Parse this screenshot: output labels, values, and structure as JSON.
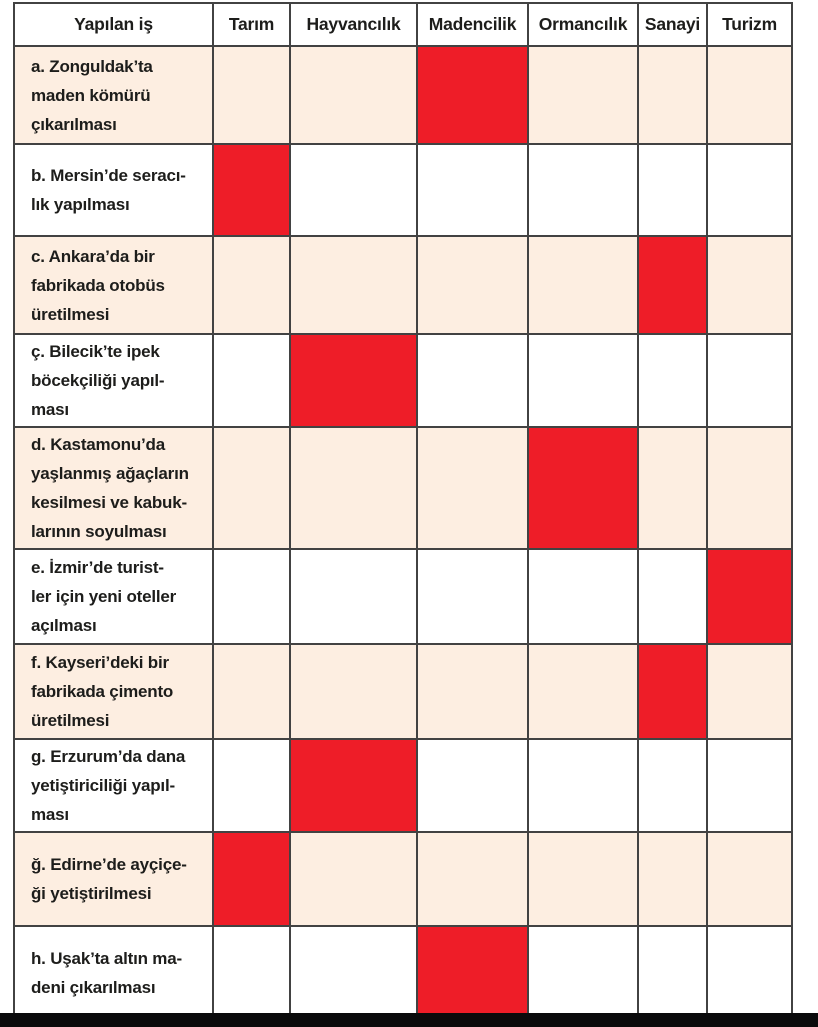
{
  "table": {
    "header": {
      "task_column": "Yapılan iş",
      "sectors": [
        "Tarım",
        "Hayvancılık",
        "Madencilik",
        "Ormancılık",
        "Sanayi",
        "Turizm"
      ]
    },
    "rows": [
      {
        "label": "a. Zonguldak’ta\nmaden kömürü\nçıkarılması",
        "marked_sector": "Madencilik",
        "marked_index": 2
      },
      {
        "label": "b. Mersin’de seracı-\nlık yapılması",
        "marked_sector": "Tarım",
        "marked_index": 0
      },
      {
        "label": "c. Ankara’da bir\nfabrikada otobüs\nüretilmesi",
        "marked_sector": "Sanayi",
        "marked_index": 4
      },
      {
        "label": "ç. Bilecik’te ipek\nböcekçiliği yapıl-\nması",
        "marked_sector": "Hayvancılık",
        "marked_index": 1
      },
      {
        "label": "d. Kastamonu’da\nyaşlanmış ağaçların\nkesilmesi ve kabuk-\nlarının soyulması",
        "marked_sector": "Ormancılık",
        "marked_index": 3
      },
      {
        "label": "e. İzmir’de turist-\nler için yeni oteller\naçılması",
        "marked_sector": "Turizm",
        "marked_index": 5
      },
      {
        "label": "f. Kayseri’deki bir\nfabrikada çimento\nüretilmesi",
        "marked_sector": "Sanayi",
        "marked_index": 4
      },
      {
        "label": "g. Erzurum’da dana\nyetiştiriciliği yapıl-\nması",
        "marked_sector": "Hayvancılık",
        "marked_index": 1
      },
      {
        "label": "ğ. Edirne’de ayçiçe-\nği yetiştirilmesi",
        "marked_sector": "Tarım",
        "marked_index": 0
      },
      {
        "label": "h. Uşak’ta altın ma-\ndeni çıkarılması",
        "marked_sector": "Madencilik",
        "marked_index": 2
      }
    ]
  },
  "colors": {
    "marked_cell": "#ee1d28",
    "row_shade": "#fdeee1",
    "grid_line": "#424242",
    "bottom_bar": "#0a0a0b",
    "text": "#1d1d1b"
  }
}
